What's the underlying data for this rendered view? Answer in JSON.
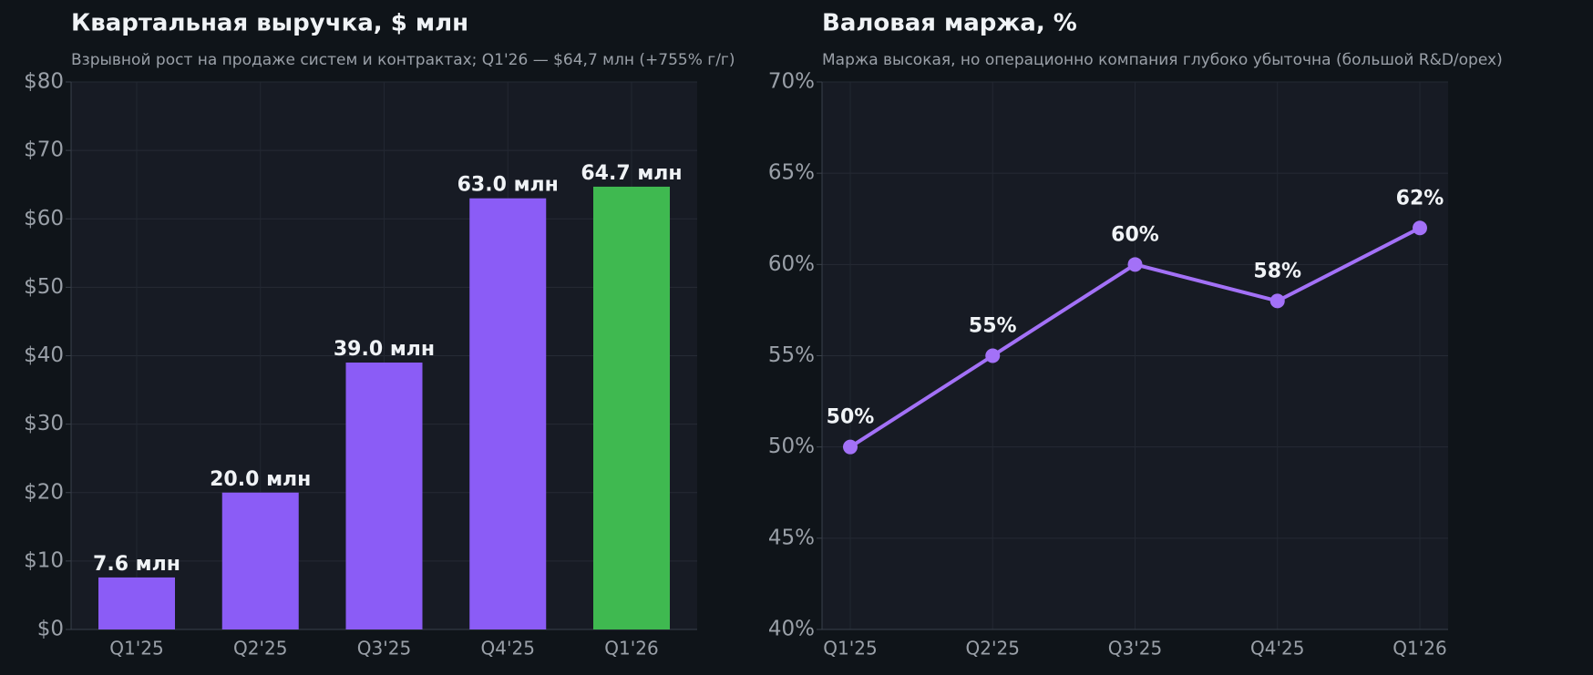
{
  "chart_data": [
    {
      "type": "bar",
      "title": "Квартальная выручка, $ млн",
      "subtitle": "Взрывной рост на продаже систем и контрактах; Q1'26 — $64,7 млн (+755% г/г)",
      "categories": [
        "Q1'25",
        "Q2'25",
        "Q3'25",
        "Q4'25",
        "Q1'26"
      ],
      "values": [
        7.6,
        20.0,
        39.0,
        63.0,
        64.7
      ],
      "value_labels": [
        "7.6 млн",
        "20.0 млн",
        "39.0 млн",
        "63.0 млн",
        "64.7 млн"
      ],
      "colors": [
        "#8b5cf6",
        "#8b5cf6",
        "#8b5cf6",
        "#8b5cf6",
        "#3fb950"
      ],
      "ylim": [
        0,
        80
      ],
      "yticks": [
        {
          "value": 0,
          "label": "$0"
        },
        {
          "value": 10,
          "label": "$10"
        },
        {
          "value": 20,
          "label": "$20"
        },
        {
          "value": 30,
          "label": "$30"
        },
        {
          "value": 40,
          "label": "$40"
        },
        {
          "value": 50,
          "label": "$50"
        },
        {
          "value": 60,
          "label": "$60"
        },
        {
          "value": 70,
          "label": "$70"
        },
        {
          "value": 80,
          "label": "$80"
        }
      ],
      "grid": true
    },
    {
      "type": "line",
      "title": "Валовая маржа, %",
      "subtitle": "Маржа высокая, но операционно компания глубоко убыточна (большой R&D/opex)",
      "categories": [
        "Q1'25",
        "Q2'25",
        "Q3'25",
        "Q4'25",
        "Q1'26"
      ],
      "values": [
        50,
        55,
        60,
        58,
        62
      ],
      "value_labels": [
        "50%",
        "55%",
        "60%",
        "58%",
        "62%"
      ],
      "color": "#a371f7",
      "ylim": [
        40,
        70
      ],
      "yticks": [
        {
          "value": 40,
          "label": "40%"
        },
        {
          "value": 45,
          "label": "45%"
        },
        {
          "value": 50,
          "label": "50%"
        },
        {
          "value": 55,
          "label": "55%"
        },
        {
          "value": 60,
          "label": "60%"
        },
        {
          "value": 65,
          "label": "65%"
        },
        {
          "value": 70,
          "label": "70%"
        }
      ],
      "grid": true
    }
  ]
}
